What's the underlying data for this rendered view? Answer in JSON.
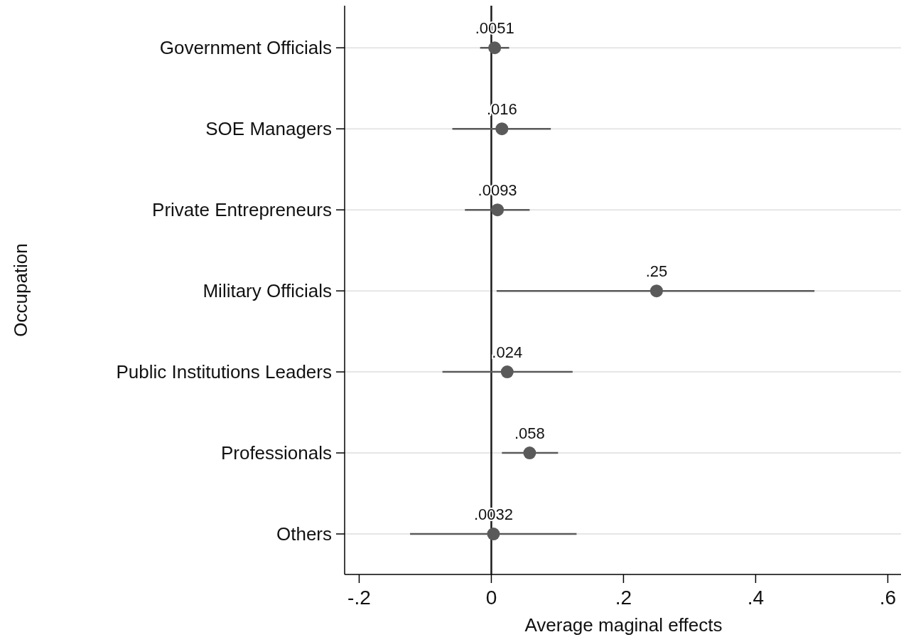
{
  "chart_data": {
    "type": "scatter",
    "orientation": "horizontal",
    "xlabel": "Average maginal effects",
    "ylabel": "Occupation",
    "categories": [
      "Government Officials",
      "SOE Managers",
      "Private Entrepreneurs",
      "Military Officials",
      "Public Institutions Leaders",
      "Professionals",
      "Others"
    ],
    "values": [
      0.0051,
      0.016,
      0.0093,
      0.25,
      0.024,
      0.058,
      0.0032
    ],
    "value_labels": [
      ".0051",
      ".016",
      ".0093",
      ".25",
      ".024",
      ".058",
      ".0032"
    ],
    "errors": [
      [
        -0.017,
        0.027
      ],
      [
        -0.059,
        0.09
      ],
      [
        -0.04,
        0.058
      ],
      [
        0.008,
        0.489
      ],
      [
        -0.074,
        0.123
      ],
      [
        0.016,
        0.101
      ],
      [
        -0.123,
        0.129
      ]
    ],
    "color": "#5a5a5a",
    "marker": "circle",
    "grid": "y",
    "xlim": [
      -0.222,
      0.62
    ],
    "xticks": [
      {
        "value": -0.2,
        "label": "-.2"
      },
      0,
      {
        "value": 0.2,
        "label": ".2"
      },
      {
        "value": 0.4,
        "label": ".4"
      },
      {
        "value": 0.6,
        "label": ".6"
      }
    ],
    "ref_lines": [
      {
        "axis": "x",
        "value": 0,
        "color": "#1a1a1a"
      }
    ]
  }
}
